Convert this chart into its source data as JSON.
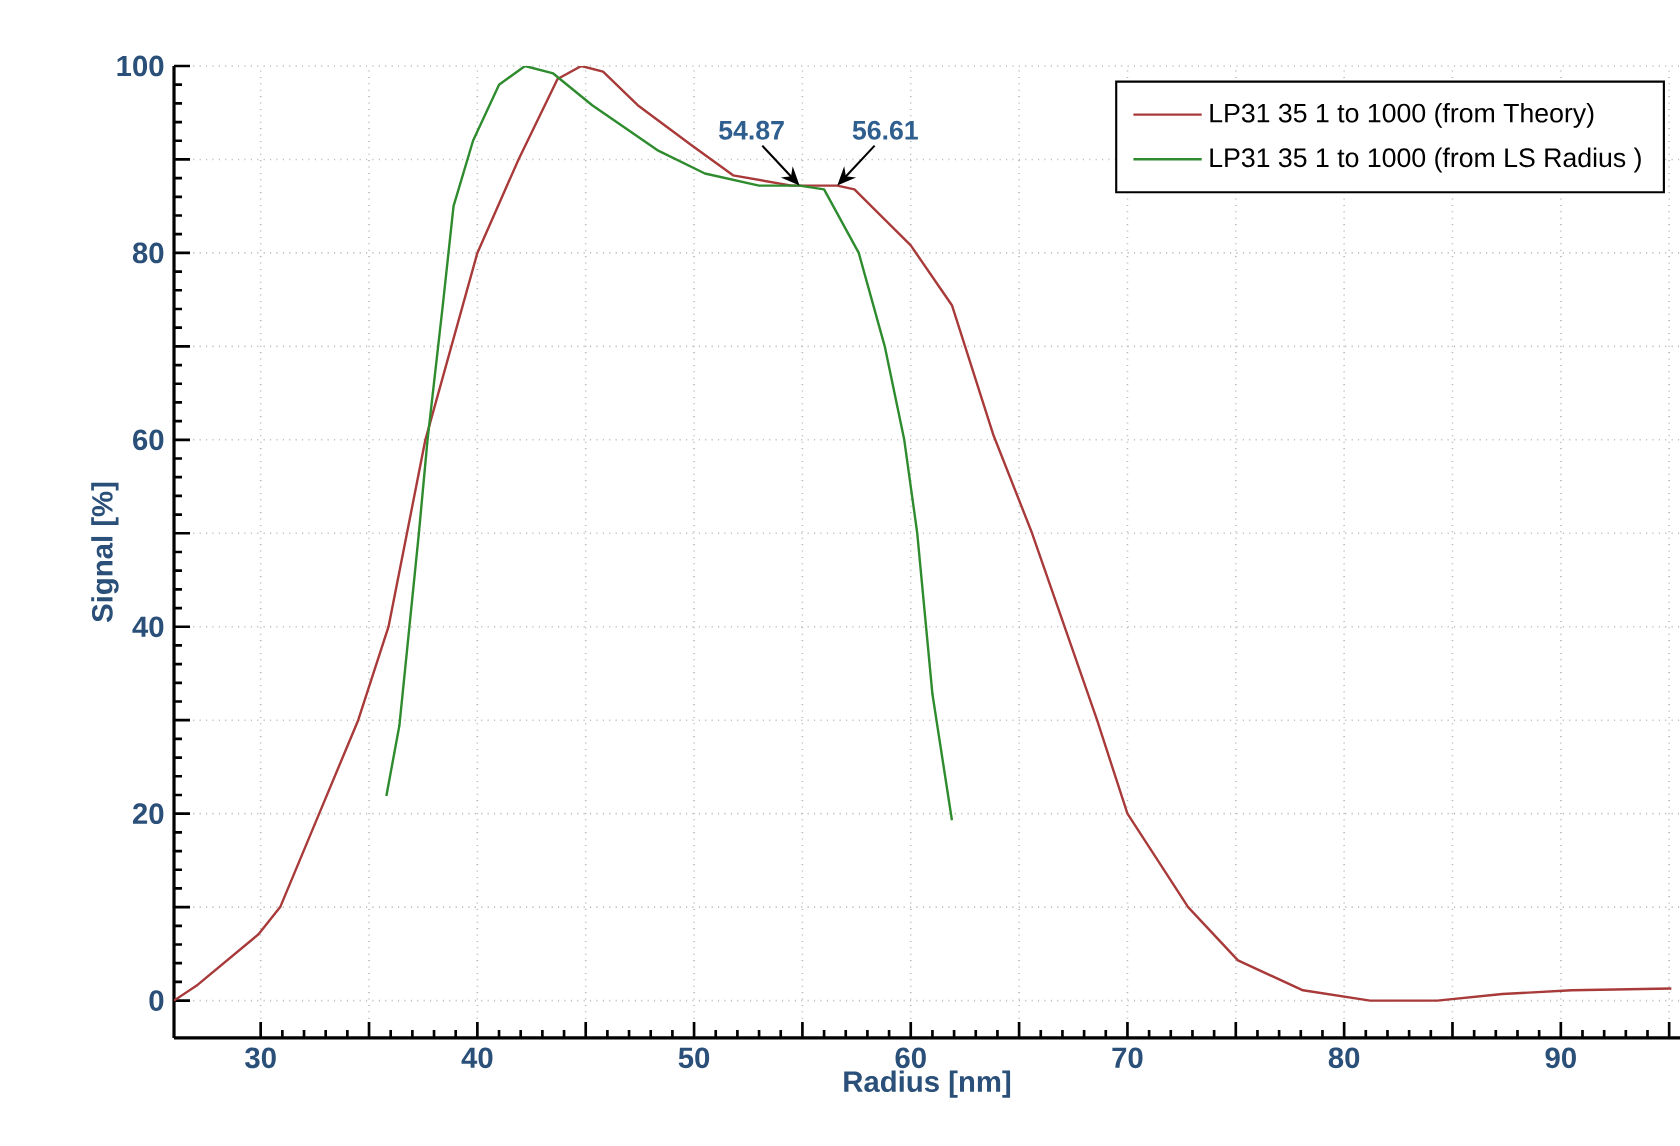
{
  "chart_data": {
    "type": "line",
    "xlabel": "Radius [nm]",
    "ylabel": "Signal [%]",
    "xlim": [
      26,
      95.5
    ],
    "ylim": [
      -4,
      100
    ],
    "xticks": [
      30,
      {
        "value": 35,
        "label": null
      },
      40,
      {
        "value": 45,
        "label": null
      },
      50,
      {
        "value": 55,
        "label": null
      },
      60,
      {
        "value": 65,
        "label": null
      },
      70,
      {
        "value": 75,
        "label": null
      },
      80,
      {
        "value": 85,
        "label": null
      },
      90,
      {
        "value": 95,
        "label": null
      }
    ],
    "yticks": [
      0,
      {
        "value": 10,
        "label": null
      },
      20,
      {
        "value": 30,
        "label": null
      },
      40,
      {
        "value": 50,
        "label": null
      },
      60,
      {
        "value": 70,
        "label": null
      },
      80,
      {
        "value": 90,
        "label": null
      },
      100
    ],
    "grid": true,
    "legend": "top right",
    "line_style": "solid",
    "series": [
      {
        "name": "LP31 35 1 to 1000 (from Theory)",
        "color": "#a83a3a",
        "x": [
          26.0,
          27.1,
          29.9,
          30.9,
          32.7,
          34.5,
          35.9,
          37.6,
          38.8,
          40.0,
          41.9,
          43.7,
          44.8,
          45.8,
          47.4,
          49.9,
          51.8,
          54.5,
          54.87,
          56.61,
          57.4,
          60.0,
          61.9,
          63.8,
          65.6,
          67.1,
          68.6,
          70.0,
          72.8,
          75.1,
          78.1,
          81.2,
          84.3,
          87.3,
          90.5,
          95.1
        ],
        "values": [
          0,
          1.7,
          7.1,
          10,
          20,
          30,
          40,
          60,
          70,
          80,
          90,
          98.6,
          100,
          99.4,
          95.8,
          91.5,
          88.3,
          87.2,
          87.2,
          87.2,
          86.8,
          80.8,
          74.4,
          60.6,
          50,
          40,
          30,
          20,
          10,
          4.3,
          1.1,
          0,
          0,
          0.7,
          1.1,
          1.3
        ]
      },
      {
        "name": "LP31 35 1 to 1000 (from LS Radius )",
        "color": "#2e8b2e",
        "x": [
          35.8,
          36.4,
          37.3,
          37.7,
          38.4,
          38.9,
          39.8,
          41.0,
          42.2,
          43.5,
          45.3,
          48.3,
          50.5,
          53.0,
          54.87,
          56.0,
          57.6,
          58.8,
          59.7,
          60.3,
          61.0,
          61.9
        ],
        "values": [
          21.9,
          29.4,
          50,
          60,
          74.3,
          85,
          92,
          98,
          100,
          99.2,
          95.8,
          91,
          88.5,
          87.2,
          87.2,
          86.8,
          80,
          70,
          60,
          50,
          32.8,
          19.3
        ]
      }
    ],
    "annotations": [
      {
        "text": "54.87",
        "x": 54.87,
        "y": 87.2
      },
      {
        "text": "56.61",
        "x": 56.61,
        "y": 87.2
      }
    ]
  }
}
